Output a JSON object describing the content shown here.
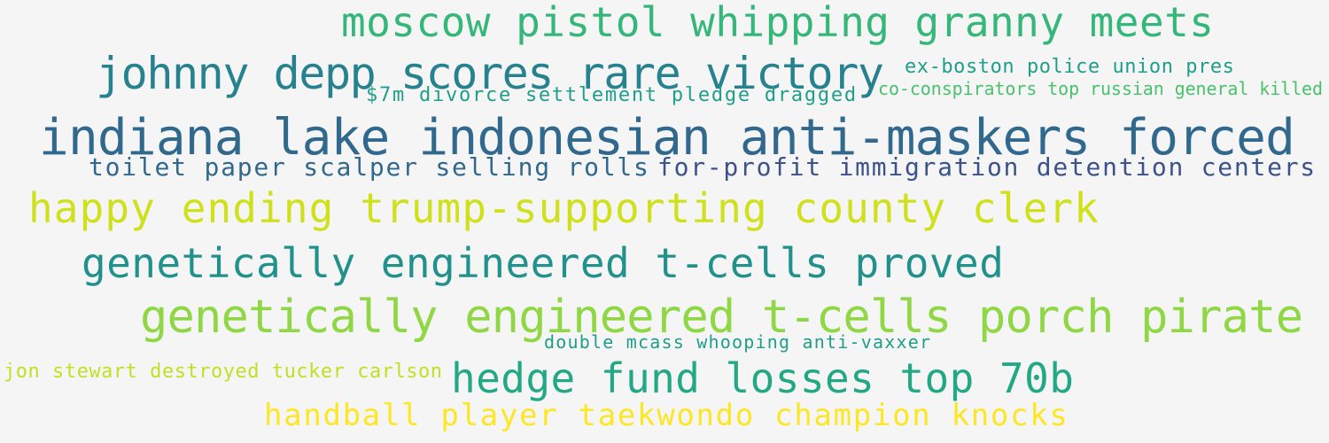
{
  "words": [
    {
      "text": "moscow pistol whipping granny meets",
      "color": "#35b779"
    },
    {
      "text": "johnny depp scores rare victory",
      "color": "#26828e"
    },
    {
      "text": "ex-boston police union pres",
      "color": "#1f9e89"
    },
    {
      "text": "$7m divorce settlement pledge dragged",
      "color": "#1f9e89"
    },
    {
      "text": "co-conspirators top russian general killed",
      "color": "#4ac16d"
    },
    {
      "text": "indiana lake indonesian anti-maskers forced",
      "color": "#31688e"
    },
    {
      "text": "toilet paper scalper selling rolls",
      "color": "#31688e"
    },
    {
      "text": "for-profit immigration detention centers",
      "color": "#3b528b"
    },
    {
      "text": "happy ending trump-supporting county clerk",
      "color": "#d0e11c"
    },
    {
      "text": "genetically engineered t-cells proved",
      "color": "#21918c"
    },
    {
      "text": "genetically engineered t-cells porch pirate",
      "color": "#8fd744"
    },
    {
      "text": "double mcass whooping anti-vaxxer",
      "color": "#1f9e89"
    },
    {
      "text": "jon stewart destroyed tucker carlson",
      "color": "#c2df23"
    },
    {
      "text": "hedge fund losses top 70b",
      "color": "#22a884"
    },
    {
      "text": "handball player taekwondo champion knocks",
      "color": "#fde725"
    }
  ]
}
